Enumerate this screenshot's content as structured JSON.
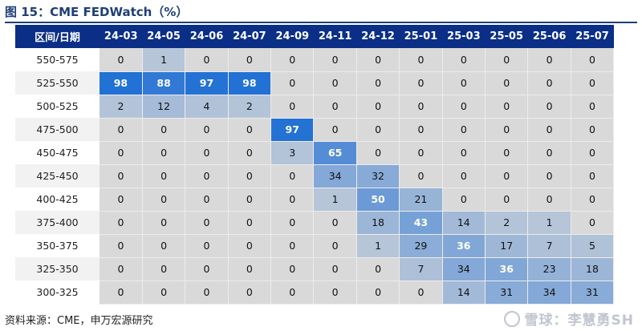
{
  "title": "图 15：CME FEDWatch（%）",
  "source": "资料来源：CME，申万宏源研究",
  "watermark": "雪球：李慧勇SH",
  "chart_data": {
    "type": "heatmap",
    "title": "图 15：CME FEDWatch（%）",
    "corner_label": "区间/日期",
    "columns": [
      "24-03",
      "24-05",
      "24-06",
      "24-07",
      "24-09",
      "24-11",
      "24-12",
      "25-01",
      "25-03",
      "25-05",
      "25-06",
      "25-07"
    ],
    "rows": [
      "550-575",
      "525-550",
      "500-525",
      "475-500",
      "450-475",
      "425-450",
      "400-425",
      "375-400",
      "350-375",
      "325-350",
      "300-325"
    ],
    "values": [
      [
        0,
        1,
        0,
        0,
        0,
        0,
        0,
        0,
        0,
        0,
        0,
        0
      ],
      [
        98,
        88,
        97,
        98,
        0,
        0,
        0,
        0,
        0,
        0,
        0,
        0
      ],
      [
        2,
        12,
        4,
        2,
        0,
        0,
        0,
        0,
        0,
        0,
        0,
        0
      ],
      [
        0,
        0,
        0,
        0,
        97,
        0,
        0,
        0,
        0,
        0,
        0,
        0
      ],
      [
        0,
        0,
        0,
        0,
        3,
        65,
        0,
        0,
        0,
        0,
        0,
        0
      ],
      [
        0,
        0,
        0,
        0,
        0,
        34,
        32,
        0,
        0,
        0,
        0,
        0
      ],
      [
        0,
        0,
        0,
        0,
        0,
        1,
        50,
        21,
        0,
        0,
        0,
        0
      ],
      [
        0,
        0,
        0,
        0,
        0,
        0,
        18,
        43,
        14,
        2,
        1,
        0
      ],
      [
        0,
        0,
        0,
        0,
        0,
        0,
        1,
        29,
        36,
        17,
        7,
        5
      ],
      [
        0,
        0,
        0,
        0,
        0,
        0,
        0,
        7,
        34,
        36,
        23,
        18
      ],
      [
        0,
        0,
        0,
        0,
        0,
        0,
        0,
        0,
        14,
        31,
        34,
        31
      ]
    ]
  }
}
